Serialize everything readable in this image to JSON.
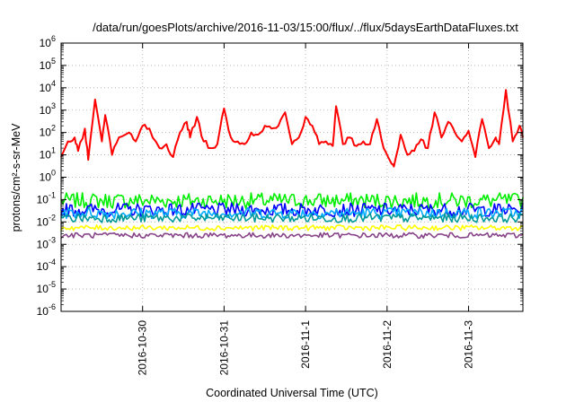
{
  "chart_data": {
    "type": "line",
    "title": "/data/run/goesPlots/archive/2016-11-03/15:00/flux/../flux/5daysEarthDataFluxes.txt",
    "xlabel": "Coordinated Universal Time (UTC)",
    "ylabel": "protons/cm²-s-sr-MeV",
    "y_scale": "log",
    "ylim": [
      1e-06,
      1000000.0
    ],
    "xlim": [
      "2016-10-29 00:00",
      "2016-11-03 16:00"
    ],
    "x_ticks": [
      "2016-10-30",
      "2016-10-31",
      "2016-11-1",
      "2016-11-2",
      "2016-11-3"
    ],
    "y_ticks": [
      {
        "base": "10",
        "exp": "-6"
      },
      {
        "base": "10",
        "exp": "-5"
      },
      {
        "base": "10",
        "exp": "-4"
      },
      {
        "base": "10",
        "exp": "-3"
      },
      {
        "base": "10",
        "exp": "-2"
      },
      {
        "base": "10",
        "exp": "-1"
      },
      {
        "base": "10",
        "exp": "0"
      },
      {
        "base": "10",
        "exp": "1"
      },
      {
        "base": "10",
        "exp": "2"
      },
      {
        "base": "10",
        "exp": "3"
      },
      {
        "base": "10",
        "exp": "4"
      },
      {
        "base": "10",
        "exp": "5"
      },
      {
        "base": "10",
        "exp": "6"
      }
    ],
    "grid": true,
    "series": [
      {
        "color": "#ff0000",
        "x": [
          "2016-10-29 00:00",
          "2016-10-29 02:00",
          "2016-10-29 04:00",
          "2016-10-29 05:00",
          "2016-10-29 07:00",
          "2016-10-29 08:00",
          "2016-10-29 10:00",
          "2016-10-29 12:00",
          "2016-10-29 13:00",
          "2016-10-29 15:00",
          "2016-10-29 17:00",
          "2016-10-29 20:00",
          "2016-10-29 22:00",
          "2016-10-30 00:00",
          "2016-10-30 02:00",
          "2016-10-30 05:00",
          "2016-10-30 07:00",
          "2016-10-30 09:00",
          "2016-10-30 11:00",
          "2016-10-30 13:00",
          "2016-10-30 14:00",
          "2016-10-30 16:00",
          "2016-10-30 18:00",
          "2016-10-30 20:00",
          "2016-10-30 22:00",
          "2016-10-31 00:00",
          "2016-10-31 02:00",
          "2016-10-31 04:00",
          "2016-10-31 06:00",
          "2016-10-31 08:00",
          "2016-10-31 10:00",
          "2016-10-31 12:00",
          "2016-10-31 14:00",
          "2016-10-31 16:00",
          "2016-10-31 18:00",
          "2016-10-31 20:00",
          "2016-10-31 22:00",
          "2016-11-01 00:00",
          "2016-11-01 02:00",
          "2016-11-01 04:00",
          "2016-11-01 06:00",
          "2016-11-01 08:00",
          "2016-11-01 09:00",
          "2016-11-01 11:00",
          "2016-11-01 13:00",
          "2016-11-01 15:00",
          "2016-11-01 17:00",
          "2016-11-01 19:00",
          "2016-11-01 21:00",
          "2016-11-01 23:00",
          "2016-11-02 01:00",
          "2016-11-02 02:00",
          "2016-11-02 04:00",
          "2016-11-02 06:00",
          "2016-11-02 08:00",
          "2016-11-02 10:00",
          "2016-11-02 12:00",
          "2016-11-02 14:00",
          "2016-11-02 16:00",
          "2016-11-02 18:00",
          "2016-11-02 20:00",
          "2016-11-02 22:00",
          "2016-11-03 00:00",
          "2016-11-03 02:00",
          "2016-11-03 04:00",
          "2016-11-03 06:00",
          "2016-11-03 08:00",
          "2016-11-03 09:00",
          "2016-11-03 11:00",
          "2016-11-03 13:00",
          "2016-11-03 15:00",
          "2016-11-03 16:00"
        ],
        "values": [
          8,
          40,
          60,
          15,
          150,
          6,
          3000,
          40,
          600,
          10,
          60,
          100,
          40,
          200,
          150,
          20,
          30,
          8,
          100,
          300,
          60,
          500,
          40,
          20,
          30,
          1200,
          60,
          40,
          30,
          100,
          80,
          200,
          150,
          200,
          800,
          30,
          60,
          500,
          200,
          30,
          40,
          25,
          1500,
          30,
          60,
          25,
          40,
          30,
          400,
          20,
          5,
          3,
          80,
          10,
          15,
          50,
          20,
          800,
          60,
          300,
          100,
          40,
          120,
          8,
          400,
          20,
          60,
          30,
          8000,
          40,
          200,
          60
        ]
      },
      {
        "color": "#00ee00",
        "x": [
          "2016-10-29 00:00",
          "2016-11-03 16:00"
        ],
        "values": [
          0.09,
          0.09
        ],
        "noise": 0.35
      },
      {
        "color": "#0000ff",
        "x": [
          "2016-10-29 00:00",
          "2016-11-03 16:00"
        ],
        "values": [
          0.035,
          0.035
        ],
        "noise": 0.3
      },
      {
        "color": "#00aaff",
        "x": [
          "2016-10-29 00:00",
          "2016-11-03 16:00"
        ],
        "values": [
          0.025,
          0.025
        ],
        "noise": 0.25
      },
      {
        "color": "#009999",
        "x": [
          "2016-10-29 00:00",
          "2016-11-03 16:00"
        ],
        "values": [
          0.015,
          0.015
        ],
        "noise": 0.2
      },
      {
        "color": "#ffff00",
        "x": [
          "2016-10-29 00:00",
          "2016-11-03 16:00"
        ],
        "values": [
          0.0055,
          0.0055
        ],
        "noise": 0.12
      },
      {
        "color": "#884488",
        "x": [
          "2016-10-29 00:00",
          "2016-11-03 16:00"
        ],
        "values": [
          0.0025,
          0.0025
        ],
        "noise": 0.12
      }
    ]
  }
}
